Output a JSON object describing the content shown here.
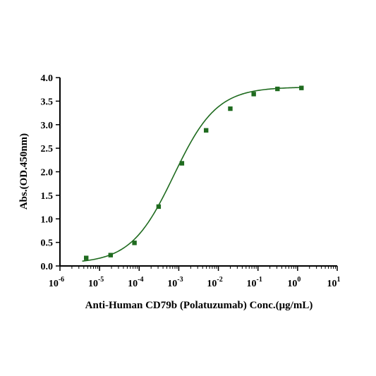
{
  "chart_data": {
    "type": "scatter",
    "title": "",
    "xlabel": "Anti-Human CD79b (Polatuzumab) Conc.(μg/mL)",
    "ylabel": "Abs.(OD.450nm)",
    "xscale": "log",
    "xlim": [
      1e-06,
      10
    ],
    "ylim": [
      0,
      4
    ],
    "x_ticks": [
      {
        "base": "10",
        "exp": "-6"
      },
      {
        "base": "10",
        "exp": "-5"
      },
      {
        "base": "10",
        "exp": "-4"
      },
      {
        "base": "10",
        "exp": "-3"
      },
      {
        "base": "10",
        "exp": "-2"
      },
      {
        "base": "10",
        "exp": "-1"
      },
      {
        "base": "10",
        "exp": "0"
      },
      {
        "base": "10",
        "exp": "1"
      }
    ],
    "y_ticks": [
      "0.0",
      "0.5",
      "1.0",
      "1.5",
      "2.0",
      "2.5",
      "3.0",
      "3.5",
      "4.0"
    ],
    "series": [
      {
        "x": [
          4.6e-06,
          1.9e-05,
          7.6e-05,
          0.00031,
          0.0012,
          0.0049,
          0.02,
          0.078,
          0.31,
          1.25
        ],
        "y": [
          0.17,
          0.23,
          0.49,
          1.26,
          2.18,
          2.88,
          3.34,
          3.65,
          3.76,
          3.78
        ]
      }
    ],
    "fit": {
      "model": "4PL",
      "bottom": 0.05,
      "top": 3.8,
      "ec50": 0.00075,
      "hill": 0.8
    },
    "grid": false,
    "legend": "none",
    "colors": {
      "marker": "#1f6b1f",
      "curve": "#1f6b1f",
      "axis": "#000000"
    }
  }
}
